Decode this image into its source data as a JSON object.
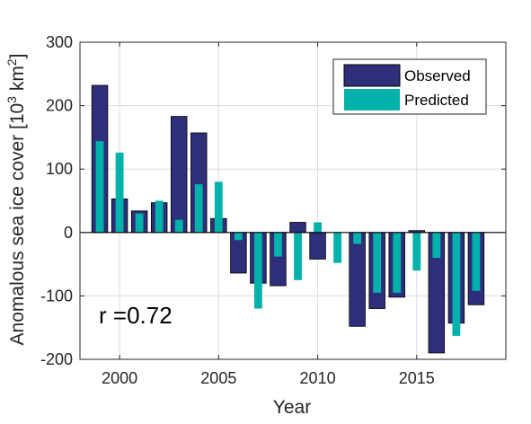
{
  "chart_data": {
    "type": "bar",
    "xlabel": "Year",
    "ylabel_main": "Anomalous sea ice cover [10",
    "ylabel_exp1": "3",
    "ylabel_unit": " km",
    "ylabel_exp2": "2",
    "ylabel_close": "]",
    "xlim": [
      1998,
      2019.5
    ],
    "ylim": [
      -200,
      300
    ],
    "xticks": [
      2000,
      2005,
      2010,
      2015
    ],
    "yticks": [
      -200,
      -100,
      0,
      100,
      200,
      300
    ],
    "grid": true,
    "legend_position": "top-right",
    "annotation": "r =0.72",
    "x": [
      1999,
      2000,
      2001,
      2002,
      2003,
      2004,
      2005,
      2006,
      2007,
      2008,
      2009,
      2010,
      2011,
      2012,
      2013,
      2014,
      2015,
      2016,
      2017,
      2018
    ],
    "series": [
      {
        "name": "Observed",
        "color": "#2e2e7a",
        "values": [
          232,
          53,
          34,
          47,
          183,
          157,
          22,
          -64,
          -80,
          -84,
          16,
          -42,
          0,
          -148,
          -120,
          -102,
          3,
          -190,
          -143,
          -114
        ]
      },
      {
        "name": "Predicted",
        "color": "#00b2aa",
        "values": [
          144,
          126,
          30,
          50,
          20,
          76,
          80,
          -12,
          -120,
          -38,
          -75,
          16,
          -48,
          -18,
          -95,
          -95,
          -60,
          -40,
          -163,
          -92
        ]
      }
    ]
  }
}
